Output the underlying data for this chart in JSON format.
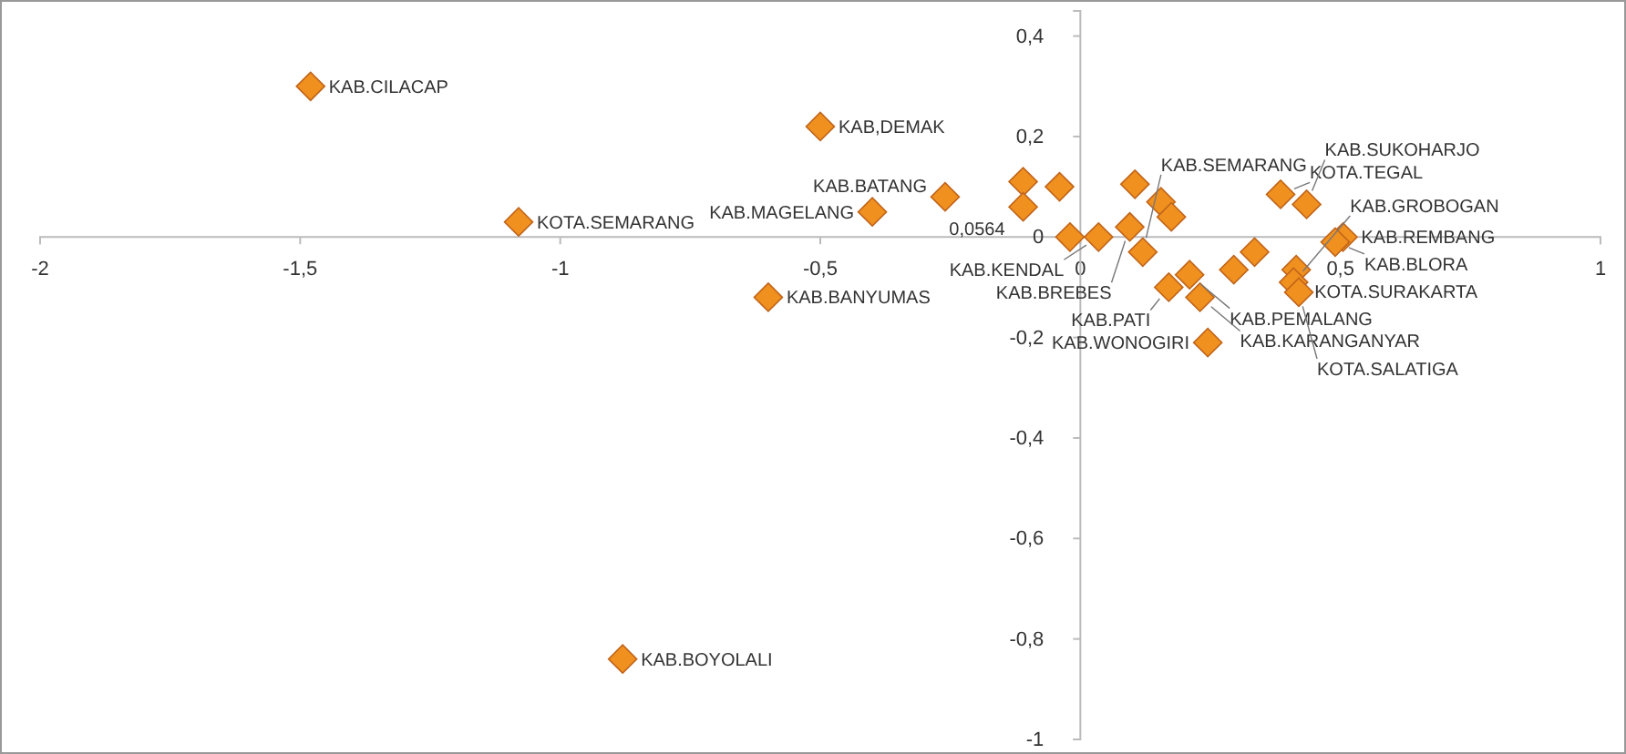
{
  "chart_data": {
    "type": "scatter",
    "marker": "diamond",
    "grid": false,
    "xlim": [
      -2,
      1
    ],
    "ylim": [
      -1,
      0.45
    ],
    "xticks": [
      {
        "value": -2,
        "label": "-2"
      },
      {
        "value": -1.5,
        "label": "-1,5"
      },
      {
        "value": -1,
        "label": "-1"
      },
      {
        "value": -0.5,
        "label": "-0,5"
      },
      {
        "value": 0,
        "label": "0"
      },
      {
        "value": 0.5,
        "label": "0,5"
      },
      {
        "value": 1,
        "label": "1"
      }
    ],
    "yticks": [
      {
        "value": -1,
        "label": "-1"
      },
      {
        "value": -0.8,
        "label": "-0,8"
      },
      {
        "value": -0.6,
        "label": "-0,6"
      },
      {
        "value": -0.4,
        "label": "-0,4"
      },
      {
        "value": -0.2,
        "label": "-0,2"
      },
      {
        "value": 0,
        "label": "0"
      },
      {
        "value": 0.2,
        "label": "0,2"
      },
      {
        "value": 0.4,
        "label": "0,4"
      }
    ],
    "series": [
      {
        "color": "#f0901e",
        "x": [
          -1.48,
          -0.5,
          -1.08,
          -0.6,
          -0.88,
          -0.4,
          -0.26,
          -0.11,
          -0.11,
          -0.04,
          0.105,
          0.155,
          0.175,
          -0.02,
          0.035,
          0.095,
          0.12,
          0.17,
          0.21,
          0.23,
          0.295,
          0.335,
          0.415,
          0.41,
          0.42,
          0.385,
          0.435,
          0.505,
          0.49,
          0.245
        ],
        "values": [
          0.3,
          0.22,
          0.03,
          -0.12,
          -0.84,
          0.05,
          0.08,
          0.11,
          0.06,
          0.1,
          0.105,
          0.07,
          0.04,
          0.0,
          0.0,
          0.02,
          -0.03,
          -0.1,
          -0.075,
          -0.12,
          -0.065,
          -0.03,
          -0.065,
          -0.09,
          -0.11,
          0.085,
          0.065,
          0.0,
          -0.01,
          -0.21
        ]
      }
    ],
    "annotations": [
      {
        "text": "KAB.CILACAP",
        "x": -1.48,
        "y": 0.3
      },
      {
        "text": "KAB,DEMAK",
        "x": -0.5,
        "y": 0.22
      },
      {
        "text": "KOTA.SEMARANG",
        "x": -1.08,
        "y": 0.03
      },
      {
        "text": "KAB.BANYUMAS",
        "x": -0.6,
        "y": -0.12
      },
      {
        "text": "KAB.BOYOLALI",
        "x": -0.88,
        "y": -0.84
      },
      {
        "text": "KAB.MAGELANG",
        "x": -0.4,
        "y": 0.05
      },
      {
        "text": "0,0564",
        "x": -0.11,
        "y": 0.06
      },
      {
        "text": "KAB.BATANG",
        "x": -0.26,
        "y": 0.08
      },
      {
        "text": "KAB.KENDAL",
        "x": 0.035,
        "y": 0.0
      },
      {
        "text": "KAB.BREBES",
        "x": 0.095,
        "y": 0.02
      },
      {
        "text": "KAB.SEMARANG",
        "x": 0.12,
        "y": -0.03
      },
      {
        "text": "KAB.PATI",
        "x": 0.17,
        "y": -0.1
      },
      {
        "text": "KAB.PEMALANG",
        "x": 0.21,
        "y": -0.075
      },
      {
        "text": "KAB.KARANGANYAR",
        "x": 0.23,
        "y": -0.12
      },
      {
        "text": "KOTA.SURAKARTA",
        "x": 0.415,
        "y": -0.065
      },
      {
        "text": "KAB.GROBOGAN",
        "x": 0.41,
        "y": -0.09
      },
      {
        "text": "KOTA.SALATIGA",
        "x": 0.42,
        "y": -0.11
      },
      {
        "text": "KOTA.TEGAL",
        "x": 0.385,
        "y": 0.085
      },
      {
        "text": "KAB.SUKOHARJO",
        "x": 0.435,
        "y": 0.065
      },
      {
        "text": "KAB.REMBANG",
        "x": 0.505,
        "y": 0.0
      },
      {
        "text": "KAB.BLORA",
        "x": 0.49,
        "y": -0.01
      },
      {
        "text": "KAB.WONOGIRI",
        "x": 0.245,
        "y": -0.21
      }
    ]
  }
}
